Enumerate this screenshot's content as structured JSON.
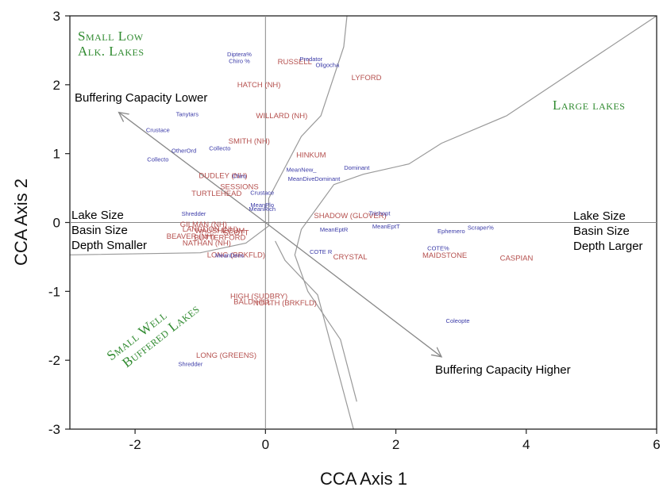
{
  "chart_data": {
    "type": "scatter",
    "xlabel": "CCA Axis 1",
    "ylabel": "CCA Axis 2",
    "xlim": [
      -3,
      6
    ],
    "ylim": [
      -3,
      3
    ],
    "xticks": [
      "-2",
      "0",
      "2",
      "4",
      "6"
    ],
    "yticks": [
      "-3",
      "-2",
      "-1",
      "0",
      "1",
      "2",
      "3"
    ],
    "colors": {
      "lakes": "#b5504e",
      "taxa": "#3b3ba8",
      "groups": "#2f8a2f",
      "lines": "#999999"
    },
    "lakes": [
      {
        "label": "RUSSELL",
        "x": 0.45,
        "y": 2.33
      },
      {
        "label": "LYFORD",
        "x": 1.55,
        "y": 2.1
      },
      {
        "label": "HATCH (NH)",
        "x": -0.1,
        "y": 2.0
      },
      {
        "label": "WILLARD (NH)",
        "x": 0.25,
        "y": 1.55
      },
      {
        "label": "SMITH (NH)",
        "x": -0.25,
        "y": 1.18
      },
      {
        "label": "HINKUM",
        "x": 0.7,
        "y": 0.98
      },
      {
        "label": "DUDLEY (NH)",
        "x": -0.65,
        "y": 0.68
      },
      {
        "label": "SESSIONS",
        "x": -0.4,
        "y": 0.52
      },
      {
        "label": "TURTLEHEAD",
        "x": -0.75,
        "y": 0.42
      },
      {
        "label": "GILMAN (NH)",
        "x": -0.95,
        "y": -0.03
      },
      {
        "label": "WAUSHECUM",
        "x": -0.7,
        "y": -0.12
      },
      {
        "label": "BEAVER (NH)",
        "x": -1.15,
        "y": -0.2
      },
      {
        "label": "LANGDON (NH)",
        "x": -0.85,
        "y": -0.1
      },
      {
        "label": "SCOTT",
        "x": -0.45,
        "y": -0.15
      },
      {
        "label": "BUTTERFORD",
        "x": -0.7,
        "y": -0.22
      },
      {
        "label": "NATHAN (NH)",
        "x": -0.9,
        "y": -0.3
      },
      {
        "label": "LONG (BRKFLD)",
        "x": -0.45,
        "y": -0.47
      },
      {
        "label": "SHADOW (GLOVER)",
        "x": 1.3,
        "y": 0.1
      },
      {
        "label": "CRYSTAL",
        "x": 1.3,
        "y": -0.5
      },
      {
        "label": "MAIDSTONE",
        "x": 2.75,
        "y": -0.48
      },
      {
        "label": "CASPIAN",
        "x": 3.85,
        "y": -0.52
      },
      {
        "label": "HIGH (SUDBRY)",
        "x": -0.1,
        "y": -1.07
      },
      {
        "label": "BALD HILL",
        "x": -0.2,
        "y": -1.15
      },
      {
        "label": "NORTH (BRKFLD)",
        "x": 0.3,
        "y": -1.17
      },
      {
        "label": "LONG (GREENS)",
        "x": -0.6,
        "y": -1.93
      }
    ],
    "taxa": [
      {
        "label": "Diptera%",
        "x": -0.4,
        "y": 2.45
      },
      {
        "label": "Chiro %",
        "x": -0.4,
        "y": 2.35
      },
      {
        "label": "Predator",
        "x": 0.7,
        "y": 2.38
      },
      {
        "label": "Oligocha",
        "x": 0.95,
        "y": 2.29
      },
      {
        "label": "Tanytars",
        "x": -1.2,
        "y": 1.58
      },
      {
        "label": "Crustace",
        "x": -1.65,
        "y": 1.35
      },
      {
        "label": "Collecto",
        "x": -0.7,
        "y": 1.08
      },
      {
        "label": "OtherOrd",
        "x": -1.25,
        "y": 1.05
      },
      {
        "label": "Collecto",
        "x": -1.65,
        "y": 0.92
      },
      {
        "label": "Dominant",
        "x": 1.4,
        "y": 0.8
      },
      {
        "label": "MeanNew_",
        "x": 0.55,
        "y": 0.77
      },
      {
        "label": "MeanDive",
        "x": 0.55,
        "y": 0.64
      },
      {
        "label": "Dominant",
        "x": 0.95,
        "y": 0.64
      },
      {
        "label": "Chiro",
        "x": -0.4,
        "y": 0.68
      },
      {
        "label": "Crustace",
        "x": -0.05,
        "y": 0.44
      },
      {
        "label": "MeanPlo",
        "x": -0.05,
        "y": 0.26
      },
      {
        "label": "MeanRich",
        "x": -0.05,
        "y": 0.2
      },
      {
        "label": "Shredder",
        "x": -1.1,
        "y": 0.13
      },
      {
        "label": "Trichopt",
        "x": 1.75,
        "y": 0.14
      },
      {
        "label": "MeanEptT",
        "x": 1.85,
        "y": -0.05
      },
      {
        "label": "MeanEptR",
        "x": 1.05,
        "y": -0.1
      },
      {
        "label": "Scraper%",
        "x": 3.3,
        "y": -0.07
      },
      {
        "label": "Ephemero",
        "x": 2.85,
        "y": -0.12
      },
      {
        "label": "COTE%",
        "x": 2.65,
        "y": -0.37
      },
      {
        "label": "COTE R",
        "x": 0.85,
        "y": -0.42
      },
      {
        "label": "MeanDens",
        "x": -0.55,
        "y": -0.47
      },
      {
        "label": "Coleopte",
        "x": 2.95,
        "y": -1.42
      },
      {
        "label": "Shredder",
        "x": -1.15,
        "y": -2.05
      }
    ],
    "gradient_labels": [
      {
        "lines": [
          "Buffering Capacity Lower"
        ]
      },
      {
        "lines": [
          "Buffering Capacity Higher"
        ]
      },
      {
        "lines": [
          "Lake Size",
          "Basin Size",
          "Depth Smaller"
        ]
      },
      {
        "lines": [
          "Lake Size",
          "Basin Size",
          "Depth Larger"
        ]
      }
    ],
    "group_labels": [
      {
        "lines": [
          "Small Low",
          "Alk. Lakes"
        ]
      },
      {
        "lines": [
          "Large lakes"
        ]
      },
      {
        "lines": [
          "Small Well",
          "Buffered Lakes"
        ]
      }
    ],
    "vectors": [
      {
        "from": [
          0,
          0
        ],
        "to": [
          -2.25,
          1.6
        ],
        "label": "Buffering Capacity Lower"
      },
      {
        "from": [
          0,
          0
        ],
        "to": [
          2.7,
          -1.95
        ],
        "label": "Buffering Capacity Higher"
      }
    ],
    "boundaries": [
      [
        [
          -3,
          -0.47
        ],
        [
          -1.0,
          -0.44
        ],
        [
          -0.3,
          -0.3
        ],
        [
          0.05,
          -0.05
        ],
        [
          0.05,
          0.35
        ],
        [
          0.55,
          1.25
        ],
        [
          0.85,
          1.55
        ],
        [
          1.2,
          2.55
        ],
        [
          1.25,
          3.0
        ]
      ],
      [
        [
          0.15,
          -0.27
        ],
        [
          0.3,
          -0.55
        ],
        [
          0.8,
          -1.05
        ],
        [
          1.35,
          -3.0
        ]
      ],
      [
        [
          6,
          3.0
        ],
        [
          3.7,
          1.55
        ],
        [
          2.7,
          1.15
        ],
        [
          2.2,
          0.85
        ],
        [
          1.5,
          0.7
        ],
        [
          1.05,
          0.55
        ],
        [
          0.55,
          -0.1
        ],
        [
          0.45,
          -0.47
        ],
        [
          0.65,
          -1.0
        ],
        [
          1.15,
          -1.7
        ],
        [
          1.4,
          -2.6
        ]
      ]
    ]
  }
}
